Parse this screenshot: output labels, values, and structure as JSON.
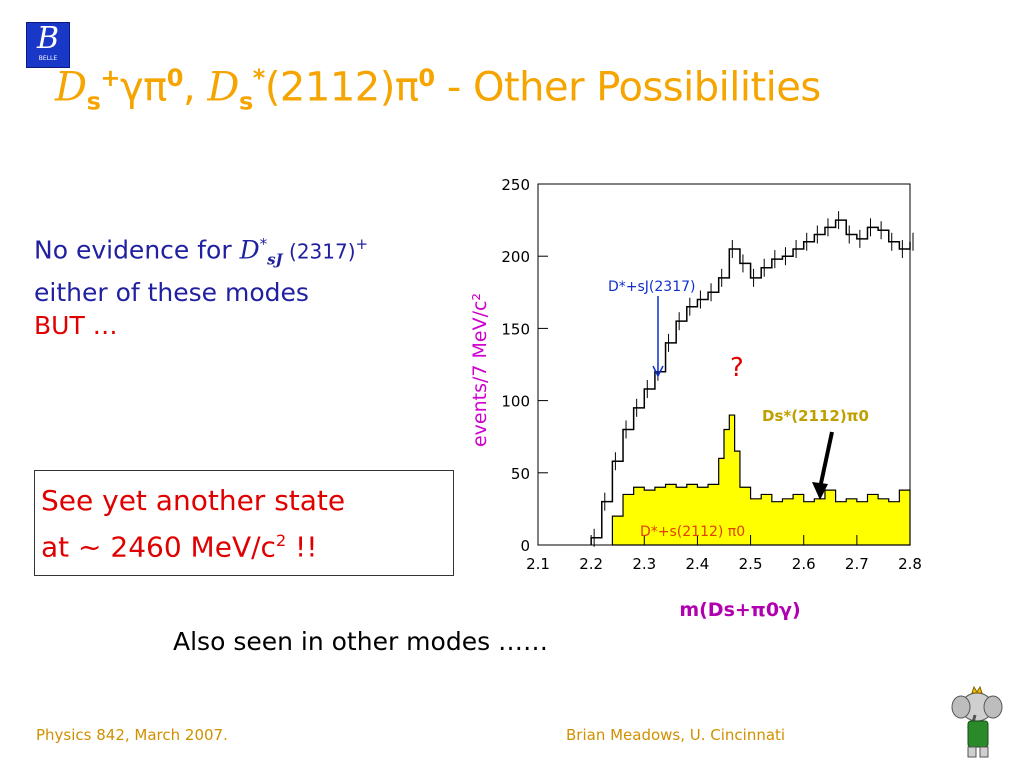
{
  "logo": {
    "letter": "B",
    "text": "BELLE"
  },
  "title": {
    "p1_sym": "D",
    "p1_sub": "s",
    "p1_sup": "+",
    "p1_rest": "γπ",
    "p1_sup2": "0",
    "comma": ", ",
    "p2_sym": "D",
    "p2_sub": "s",
    "p2_sup": "*",
    "p2_rest": "(2112)π",
    "p2_sup2": "0",
    "tail": " - Other Possibilities"
  },
  "left_text": {
    "line1_pre": "No evidence for ",
    "line1_sym": "D",
    "line1_sup": "*",
    "line1_sub": "sJ",
    "line1_post": " (2317)",
    "line1_post_sup": "+",
    "line2": "either of these modes",
    "but": "BUT …"
  },
  "box": {
    "line1": "See yet another state",
    "line2_pre": "at ~ 2460 MeV/c",
    "line2_sup": "2",
    "line2_post": " !!"
  },
  "also": "Also seen in other modes ……",
  "footer": {
    "left": "Physics 842, March 2007.",
    "right": "Brian Meadows, U. Cincinnati"
  },
  "chart_data": {
    "type": "line",
    "ylabel": "events/7 MeV/c²",
    "xlabel": "m(Ds+π0γ)",
    "xlim": [
      2.1,
      2.8
    ],
    "ylim": [
      0,
      250
    ],
    "xticks": [
      "2.1",
      "2.2",
      "2.3",
      "2.4",
      "2.5",
      "2.6",
      "2.7",
      "2.8"
    ],
    "yticks": [
      "0",
      "50",
      "100",
      "150",
      "200",
      "250"
    ],
    "annotations": {
      "dsj": "D*+sJ(2317)",
      "question": "?",
      "ds2112": "Ds*(2112)π0",
      "ds2112_inside": "D*+s(2112) π0"
    },
    "series": [
      {
        "style": "histogram-black",
        "x": [
          2.2,
          2.22,
          2.24,
          2.26,
          2.28,
          2.3,
          2.32,
          2.34,
          2.36,
          2.38,
          2.4,
          2.42,
          2.44,
          2.46,
          2.48,
          2.5,
          2.52,
          2.54,
          2.56,
          2.58,
          2.6,
          2.62,
          2.64,
          2.66,
          2.68,
          2.7,
          2.72,
          2.74,
          2.76,
          2.78,
          2.8
        ],
        "y": [
          5,
          30,
          58,
          80,
          95,
          108,
          120,
          140,
          155,
          165,
          170,
          175,
          185,
          205,
          195,
          185,
          192,
          198,
          200,
          205,
          210,
          215,
          220,
          225,
          215,
          212,
          220,
          218,
          210,
          205,
          210
        ]
      },
      {
        "style": "histogram-yellow-filled",
        "x": [
          2.24,
          2.26,
          2.28,
          2.3,
          2.32,
          2.34,
          2.36,
          2.38,
          2.4,
          2.42,
          2.44,
          2.45,
          2.46,
          2.47,
          2.48,
          2.5,
          2.52,
          2.54,
          2.56,
          2.58,
          2.6,
          2.62,
          2.64,
          2.66,
          2.68,
          2.7,
          2.72,
          2.74,
          2.76,
          2.78,
          2.8
        ],
        "y": [
          20,
          35,
          40,
          38,
          40,
          42,
          40,
          42,
          40,
          42,
          60,
          80,
          90,
          65,
          40,
          32,
          35,
          30,
          32,
          35,
          30,
          32,
          38,
          30,
          32,
          30,
          35,
          32,
          30,
          38,
          28
        ]
      }
    ]
  }
}
